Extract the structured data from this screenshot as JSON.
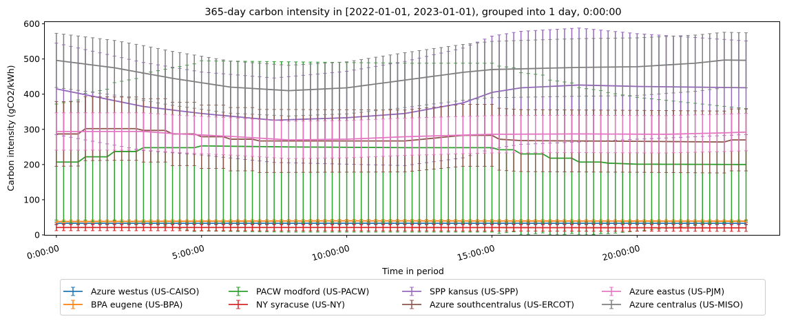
{
  "chart_data": {
    "type": "line",
    "title": "365-day carbon intensity in [2022-01-01, 2023-01-01), grouped into 1 day, 0:00:00",
    "xlabel": "Time in period",
    "ylabel": "Carbon intensity (gCO2/kWh)",
    "x_tick_labels": [
      "0:00:00",
      "5:00:00",
      "10:00:00",
      "15:00:00",
      "20:00:00"
    ],
    "x_tick_hours": [
      0,
      5,
      10,
      15,
      20
    ],
    "xlim_hours": [
      -0.4,
      24.9
    ],
    "y_ticks": [
      0,
      100,
      200,
      300,
      400,
      500,
      600
    ],
    "ylim": [
      0,
      605
    ],
    "grid": false,
    "legend_position": "bottom",
    "error_bars": true,
    "x_hours_start": 0,
    "x_hours_step": 0.25,
    "x_count": 96,
    "series": [
      {
        "name": "Azure westus (US-CAISO)",
        "color": "#1f77b4",
        "anchors": [
          [
            0,
            33
          ],
          [
            24,
            33
          ]
        ],
        "err_anchors": [
          [
            0,
            4
          ],
          [
            24,
            4
          ]
        ]
      },
      {
        "name": "BPA eugene (US-BPA)",
        "color": "#ff7f0e",
        "anchors": [
          [
            0,
            38
          ],
          [
            10,
            40
          ],
          [
            24,
            39
          ]
        ],
        "err_anchors": [
          [
            0,
            4
          ],
          [
            24,
            4
          ]
        ]
      },
      {
        "name": "PACW modford (US-PACW)",
        "color": "#2ca02c",
        "anchors": [
          [
            0,
            207
          ],
          [
            0.75,
            207
          ],
          [
            1.0,
            222
          ],
          [
            1.75,
            222
          ],
          [
            2.0,
            237
          ],
          [
            2.75,
            237
          ],
          [
            3.0,
            248
          ],
          [
            4.75,
            248
          ],
          [
            5.0,
            253
          ],
          [
            8.0,
            250
          ],
          [
            12.0,
            248
          ],
          [
            15.0,
            248
          ],
          [
            15.25,
            242
          ],
          [
            15.75,
            242
          ],
          [
            16.0,
            230
          ],
          [
            16.75,
            230
          ],
          [
            17.0,
            218
          ],
          [
            17.75,
            218
          ],
          [
            18.0,
            207
          ],
          [
            18.75,
            207
          ],
          [
            19.0,
            204
          ],
          [
            20.0,
            201
          ],
          [
            24,
            200
          ]
        ],
        "err_anchors": [
          [
            0,
            165
          ],
          [
            5,
            242
          ],
          [
            8,
            242
          ],
          [
            12,
            240
          ],
          [
            15,
            240
          ],
          [
            17,
            222
          ],
          [
            20,
            190
          ],
          [
            24,
            157
          ]
        ]
      },
      {
        "name": "NY syracuse (US-NY)",
        "color": "#d62728",
        "anchors": [
          [
            0,
            21
          ],
          [
            12,
            21
          ],
          [
            24,
            20
          ]
        ],
        "err_anchors": [
          [
            0,
            9
          ],
          [
            24,
            10
          ]
        ]
      },
      {
        "name": "SPP kansus (US-SPP)",
        "color": "#9467bd",
        "anchors": [
          [
            0,
            415
          ],
          [
            3,
            365
          ],
          [
            5,
            345
          ],
          [
            7.5,
            326
          ],
          [
            10,
            333
          ],
          [
            12,
            345
          ],
          [
            14,
            375
          ],
          [
            15,
            405
          ],
          [
            16,
            418
          ],
          [
            18,
            426
          ],
          [
            20,
            422
          ],
          [
            24,
            418
          ]
        ],
        "err_anchors": [
          [
            0,
            130
          ],
          [
            3,
            125
          ],
          [
            5,
            118
          ],
          [
            7.5,
            120
          ],
          [
            10,
            132
          ],
          [
            12,
            148
          ],
          [
            15,
            160
          ],
          [
            18,
            162
          ],
          [
            20,
            150
          ],
          [
            24,
            132
          ]
        ]
      },
      {
        "name": "Azure southcentralus (US-ERCOT)",
        "color": "#8c564b",
        "anchors": [
          [
            0,
            287
          ],
          [
            0.75,
            287
          ],
          [
            1.0,
            302
          ],
          [
            2.75,
            302
          ],
          [
            3.0,
            297
          ],
          [
            3.75,
            297
          ],
          [
            4.0,
            287
          ],
          [
            4.75,
            287
          ],
          [
            5.0,
            279
          ],
          [
            5.75,
            279
          ],
          [
            6.0,
            272
          ],
          [
            6.75,
            272
          ],
          [
            7.0,
            267
          ],
          [
            12.0,
            267
          ],
          [
            13.0,
            275
          ],
          [
            14.0,
            283
          ],
          [
            15.0,
            283
          ],
          [
            15.25,
            272
          ],
          [
            16.0,
            268
          ],
          [
            20,
            266
          ],
          [
            23,
            264
          ],
          [
            23.25,
            270
          ],
          [
            24,
            270
          ]
        ],
        "err_anchors": [
          [
            0,
            92
          ],
          [
            2,
            90
          ],
          [
            6,
            90
          ],
          [
            12,
            88
          ],
          [
            18,
            88
          ],
          [
            24,
            88
          ]
        ]
      },
      {
        "name": "Azure eastus (US-PJM)",
        "color": "#e377c2",
        "anchors": [
          [
            0,
            294
          ],
          [
            3,
            294
          ],
          [
            4,
            288
          ],
          [
            6,
            280
          ],
          [
            8,
            270
          ],
          [
            10,
            272
          ],
          [
            12,
            279
          ],
          [
            15,
            286
          ],
          [
            18,
            287
          ],
          [
            21,
            286
          ],
          [
            23,
            290
          ],
          [
            24,
            293
          ]
        ],
        "err_anchors": [
          [
            0,
            53
          ],
          [
            24,
            53
          ]
        ]
      },
      {
        "name": "Azure centralus (US-MISO)",
        "color": "#7f7f7f",
        "anchors": [
          [
            0,
            496
          ],
          [
            2,
            475
          ],
          [
            4,
            445
          ],
          [
            6,
            420
          ],
          [
            8,
            410
          ],
          [
            10,
            418
          ],
          [
            12,
            440
          ],
          [
            14,
            462
          ],
          [
            15,
            470
          ],
          [
            18,
            476
          ],
          [
            20,
            478
          ],
          [
            22,
            488
          ],
          [
            23,
            497
          ],
          [
            24,
            496
          ]
        ],
        "err_anchors": [
          [
            0,
            77
          ],
          [
            3,
            78
          ],
          [
            6,
            74
          ],
          [
            8,
            72
          ],
          [
            10,
            74
          ],
          [
            12,
            78
          ],
          [
            15,
            80
          ],
          [
            18,
            82
          ],
          [
            20,
            82
          ],
          [
            22,
            80
          ],
          [
            24,
            78
          ]
        ]
      }
    ]
  }
}
